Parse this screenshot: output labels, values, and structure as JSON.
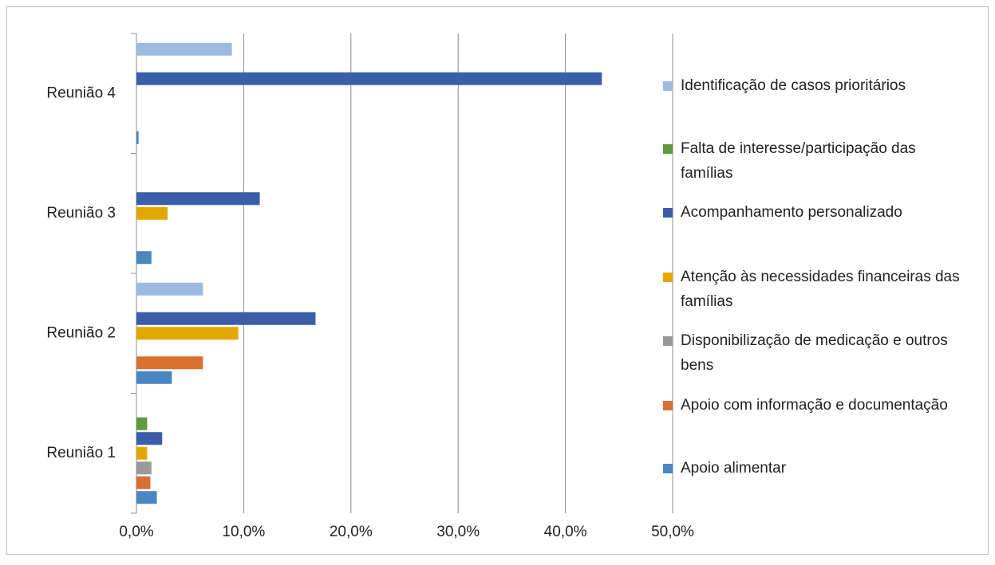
{
  "chart_data": {
    "type": "bar",
    "orientation": "horizontal",
    "categories": [
      "Reunião 1",
      "Reunião 2",
      "Reunião 3",
      "Reunião 4"
    ],
    "series": [
      {
        "name": "Apoio alimentar",
        "color": "#4a86c2",
        "values": [
          1.9,
          3.3,
          1.4,
          0.2
        ]
      },
      {
        "name": "Apoio com informação e documentação",
        "color": "#d8702f",
        "values": [
          1.3,
          6.2,
          0,
          0
        ]
      },
      {
        "name": "Disponibilização de medicação e outros bens",
        "color": "#9a9a9a",
        "values": [
          1.4,
          0,
          0,
          0
        ]
      },
      {
        "name": "Atenção às necessidades financeiras das famílias",
        "color": "#e3a800",
        "values": [
          1.0,
          9.5,
          2.9,
          0
        ]
      },
      {
        "name": "Acompanhamento personalizado",
        "color": "#3a5ea9",
        "values": [
          2.4,
          16.7,
          11.5,
          43.4
        ]
      },
      {
        "name": "Falta de interesse/participação das famílias",
        "color": "#5f9a3f",
        "values": [
          1.0,
          0,
          0,
          0
        ]
      },
      {
        "name": "Identificação de casos prioritários",
        "color": "#9bbce0",
        "values": [
          0,
          6.2,
          0,
          8.9
        ]
      }
    ],
    "xlim": [
      0,
      50
    ],
    "xticks": [
      {
        "value": 0,
        "label": "0,0%"
      },
      {
        "value": 10,
        "label": "10,0%"
      },
      {
        "value": 20,
        "label": "20,0%"
      },
      {
        "value": 30,
        "label": "30,0%"
      },
      {
        "value": 40,
        "label": "40,0%"
      },
      {
        "value": 50,
        "label": "50,0%"
      }
    ],
    "grid": true,
    "legend": "right"
  }
}
